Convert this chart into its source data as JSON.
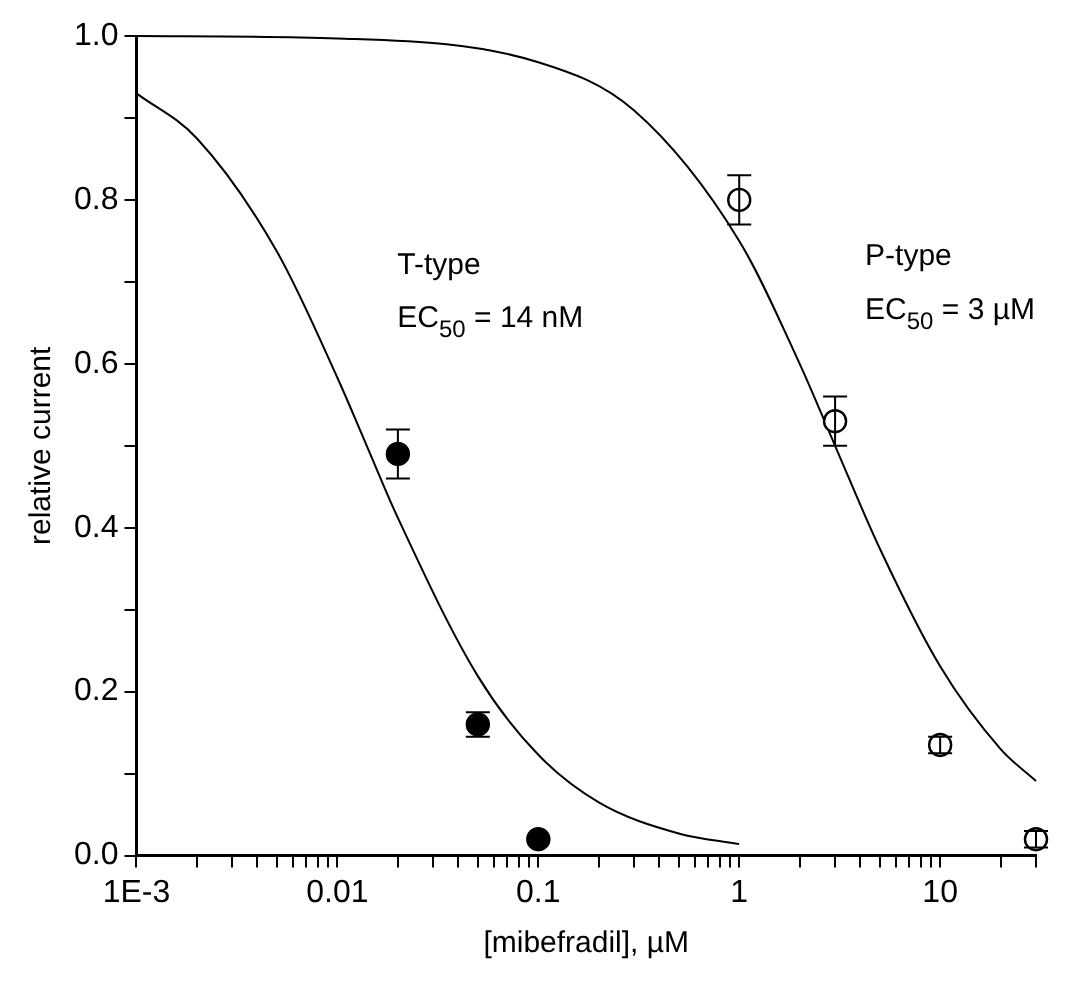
{
  "chart_data": {
    "type": "scatter",
    "xlabel": "[mibefradil], µM",
    "ylabel": "relative current",
    "log": "x",
    "grid": false,
    "legend": false,
    "marker": "circle",
    "xlim": [
      0.001,
      30
    ],
    "ylim": [
      0,
      1
    ],
    "xticks": [
      {
        "value": 0.001,
        "label": "1E-3"
      },
      {
        "value": 0.002,
        "label": null
      },
      {
        "value": 0.003,
        "label": null
      },
      {
        "value": 0.004,
        "label": null
      },
      {
        "value": 0.005,
        "label": null
      },
      {
        "value": 0.006,
        "label": null
      },
      {
        "value": 0.007,
        "label": null
      },
      {
        "value": 0.008,
        "label": null
      },
      {
        "value": 0.009,
        "label": null
      },
      0.01,
      {
        "value": 0.02,
        "label": null
      },
      {
        "value": 0.03,
        "label": null
      },
      {
        "value": 0.04,
        "label": null
      },
      {
        "value": 0.05,
        "label": null
      },
      {
        "value": 0.06,
        "label": null
      },
      {
        "value": 0.07,
        "label": null
      },
      {
        "value": 0.08,
        "label": null
      },
      {
        "value": 0.09,
        "label": null
      },
      0.1,
      {
        "value": 0.2,
        "label": null
      },
      {
        "value": 0.3,
        "label": null
      },
      {
        "value": 0.4,
        "label": null
      },
      {
        "value": 0.5,
        "label": null
      },
      {
        "value": 0.6,
        "label": null
      },
      {
        "value": 0.7,
        "label": null
      },
      {
        "value": 0.8,
        "label": null
      },
      {
        "value": 0.9,
        "label": null
      },
      1,
      {
        "value": 2,
        "label": null
      },
      {
        "value": 3,
        "label": null
      },
      {
        "value": 4,
        "label": null
      },
      {
        "value": 5,
        "label": null
      },
      {
        "value": 6,
        "label": null
      },
      {
        "value": 7,
        "label": null
      },
      {
        "value": 8,
        "label": null
      },
      {
        "value": 9,
        "label": null
      },
      10,
      {
        "value": 20,
        "label": null
      },
      {
        "value": 30,
        "label": null
      }
    ],
    "yticks": [
      {
        "value": 0,
        "label": "0.0"
      },
      {
        "value": 0.1,
        "label": null
      },
      0.2,
      {
        "value": 0.3,
        "label": null
      },
      0.4,
      {
        "value": 0.5,
        "label": null
      },
      0.6,
      {
        "value": 0.7,
        "label": null
      },
      0.8,
      {
        "value": 0.9,
        "label": null
      },
      {
        "value": 1,
        "label": "1.0"
      }
    ],
    "series": [
      {
        "type": "scatter",
        "color": "#000000",
        "x": [
          0.02,
          0.05,
          0.1
        ],
        "values": [
          0.49,
          0.16,
          0.02
        ],
        "errors": [
          0.03,
          0.015,
          null
        ]
      },
      {
        "type": "scatter",
        "color": "#000000",
        "x": [
          1,
          3,
          10,
          30
        ],
        "values": [
          0.8,
          0.53,
          0.135,
          0.02
        ],
        "errors": [
          0.03,
          0.03,
          0.01,
          0.01
        ]
      },
      {
        "type": "line",
        "color": "#000000",
        "marker": "none",
        "x": [
          0.001,
          0.002,
          0.005,
          0.01,
          0.014,
          0.02,
          0.05,
          0.1,
          0.2,
          0.5,
          1
        ],
        "values": [
          0.93,
          0.875,
          0.737,
          0.583,
          0.5,
          0.412,
          0.219,
          0.123,
          0.065,
          0.027,
          0.014
        ]
      },
      {
        "type": "line",
        "color": "#000000",
        "marker": "none",
        "x": [
          0.001,
          0.01,
          0.1,
          0.3,
          1,
          2,
          3,
          5,
          10,
          20,
          30
        ],
        "values": [
          1.0,
          0.997,
          0.968,
          0.909,
          0.75,
          0.6,
          0.5,
          0.375,
          0.231,
          0.13,
          0.091
        ]
      }
    ],
    "annotations": [
      "T-type",
      "EC$_{50}$ = 14 nM",
      "P-type",
      "EC$_{50}$ = 3 µM"
    ]
  }
}
